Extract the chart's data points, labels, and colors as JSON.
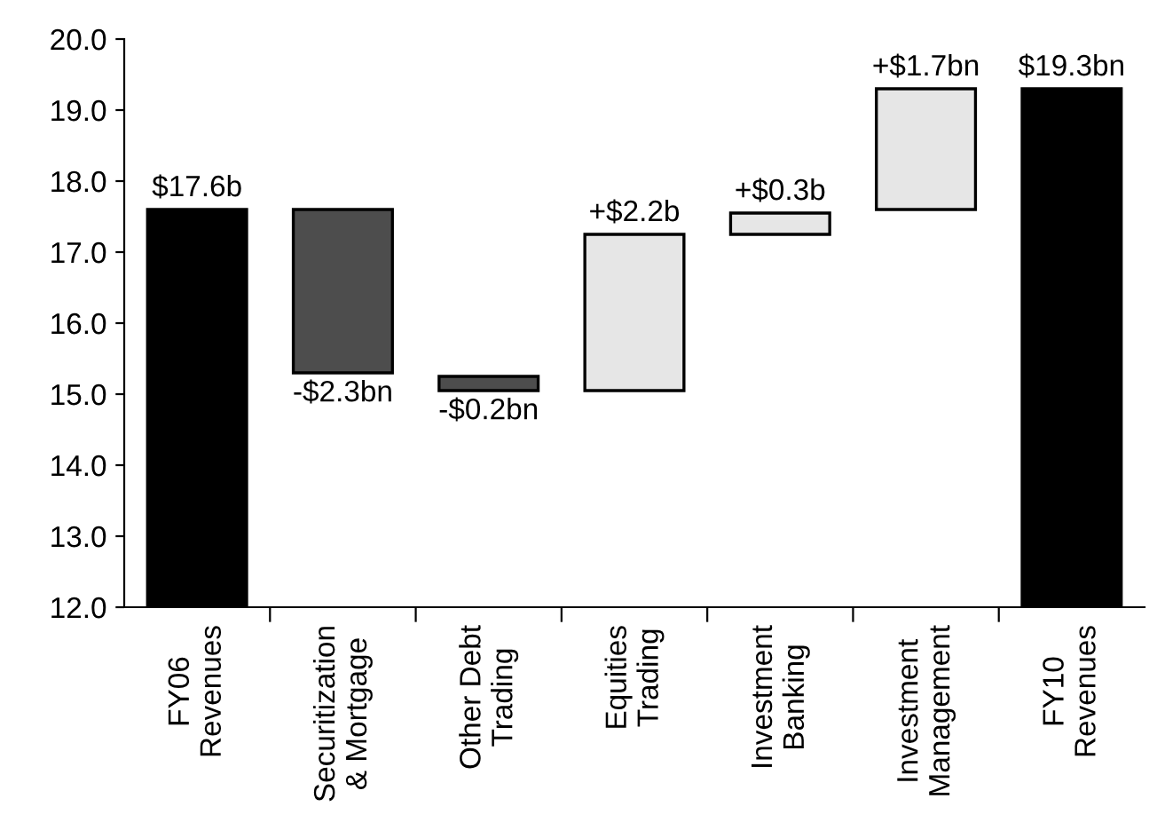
{
  "chart_data": {
    "type": "bar",
    "categories": [
      "FY06\nRevenues",
      "Securitization\n& Mortgage",
      "Other Debt\nTrading",
      "Equities\nTrading",
      "Investment\nBanking",
      "Investment\nManagement",
      "FY10\nRevenues"
    ],
    "values": [
      5.6,
      -2.3,
      -0.2,
      2.2,
      0.3,
      1.7,
      7.3
    ],
    "base": [
      12.0,
      17.6,
      15.25,
      15.05,
      17.25,
      17.6,
      12.0
    ],
    "colors": [
      "#000000",
      "#4d4d4d",
      "#4d4d4d",
      "#e6e6e6",
      "#e6e6e6",
      "#e6e6e6",
      "#000000"
    ],
    "value_labels": [
      "$17.6b",
      "-$2.3bn",
      "-$0.2bn",
      "+$2.2b",
      "+$0.3b",
      "+$1.7bn",
      "$19.3bn"
    ],
    "ylim": [
      12.0,
      20.0
    ],
    "yticks": [
      {
        "value": 12,
        "label": "12.0"
      },
      {
        "value": 13,
        "label": "13.0"
      },
      {
        "value": 14,
        "label": "14.0"
      },
      {
        "value": 15,
        "label": "15.0"
      },
      {
        "value": 16,
        "label": "16.0"
      },
      {
        "value": 17,
        "label": "17.0"
      },
      {
        "value": 18,
        "label": "18.0"
      },
      {
        "value": 19,
        "label": "19.0"
      },
      {
        "value": 20,
        "label": "20.0"
      }
    ],
    "grid": false,
    "legend": false
  }
}
